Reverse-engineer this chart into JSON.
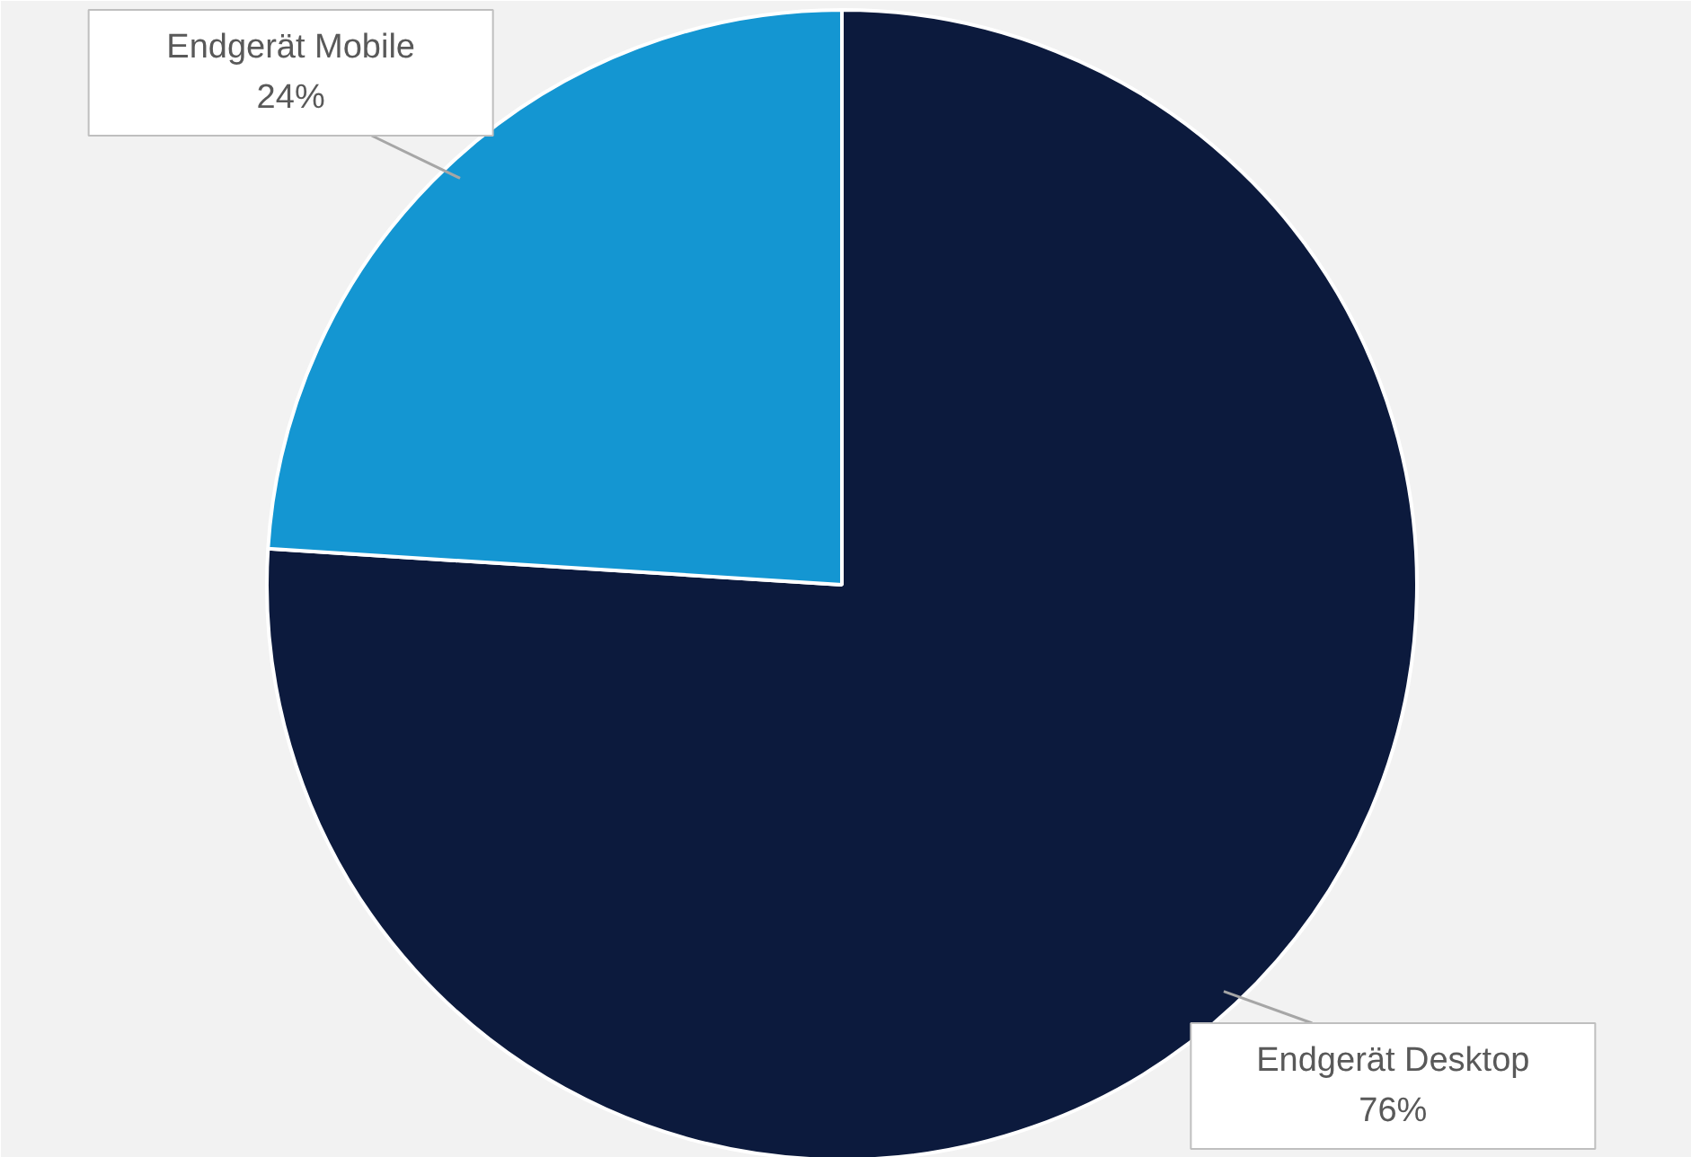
{
  "chart_data": {
    "type": "pie",
    "categories": [
      "Endgerät Desktop",
      "Endgerät Mobile"
    ],
    "values": [
      76,
      24
    ],
    "colors": [
      "#0c1a3d",
      "#1496d2"
    ],
    "value_labels": [
      "76%",
      "24%"
    ],
    "legend": false
  }
}
